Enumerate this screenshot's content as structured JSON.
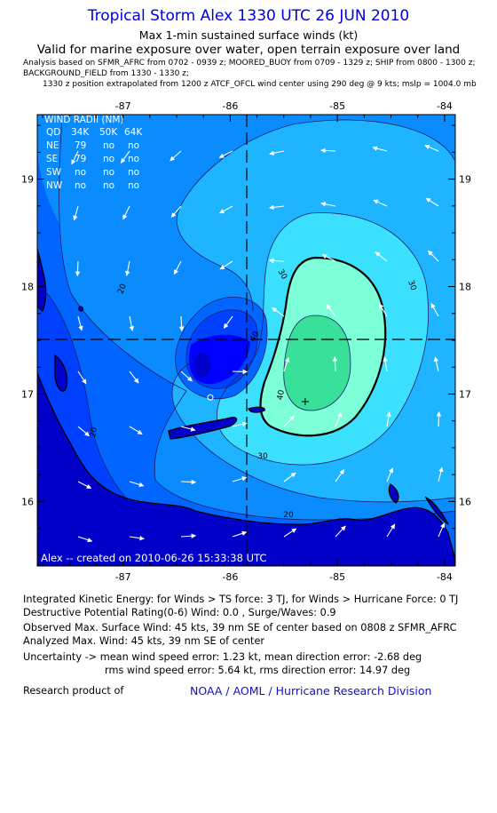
{
  "header": {
    "title": "Tropical Storm Alex 1330 UTC 26 JUN 2010",
    "subtitle": "Max 1-min sustained surface winds (kt)",
    "valid_line": "Valid for marine exposure over water, open terrain exposure over land",
    "analysis_line1": "Analysis based on  SFMR_AFRC from 0702 - 0939 z;  MOORED_BUOY from 0709 - 1329 z;  SHIP from 0800 - 1300 z;",
    "analysis_line2": "BACKGROUND_FIELD from 1330 - 1330 z;",
    "analysis_line3": "1330 z position extrapolated from 1200 z ATCF_OFCL wind center using 290 deg @ 9 kts; mslp = 1004.0 mb"
  },
  "chart_data": {
    "type": "contour",
    "title": "Tropical Storm Alex 1330 UTC 26 JUN 2010",
    "subtitle": "Max 1-min sustained surface winds (kt)",
    "xlim": [
      -87.8,
      -83.9
    ],
    "ylim": [
      15.4,
      19.6
    ],
    "x_ticks": [
      -87,
      -86,
      -85,
      -84
    ],
    "y_ticks": [
      16,
      17,
      18,
      19
    ],
    "contour_labels": [
      "20",
      "20",
      "20",
      "30",
      "30",
      "30",
      "40",
      "40"
    ],
    "storm_center": {
      "lon": -85.97,
      "lat": 17.2
    },
    "max_wind_location": {
      "lon": -85.3,
      "lat": 16.93
    },
    "legend_colors": [
      "#0000ff",
      "#0040ff",
      "#0066ff",
      "#0a8cff",
      "#1eb4ff",
      "#3ce0ff",
      "#7dffd8",
      "#38e09a"
    ],
    "wind_radii": {
      "title": "WIND RADII (NM)",
      "headers": [
        "QD",
        "34K",
        "50K",
        "64K"
      ],
      "rows": [
        [
          "NE",
          "79",
          "no",
          "no"
        ],
        [
          "SE",
          "79",
          "no",
          "no"
        ],
        [
          "SW",
          "no",
          "no",
          "no"
        ],
        [
          "NW",
          "no",
          "no",
          "no"
        ]
      ]
    },
    "watermark": "Alex -- created on 2010-06-26 15:33:38 UTC"
  },
  "info": {
    "ike": "Integrated Kinetic Energy:  for Winds > TS force: 3 TJ,  for Winds > Hurricane Force: 0 TJ",
    "dpr": "Destructive Potential Rating(0-6)  Wind: 0.0 , Surge/Waves: 0.9",
    "observed": "Observed Max. Surface Wind: 45 kts, 39 nm SE of center based on 0808 z SFMR_AFRC",
    "analyzed": "Analyzed Max. Wind: 45 kts, 39 nm SE of center",
    "uncert1": "Uncertainty -> mean wind speed error: 1.23 kt,    mean direction error:  -2.68 deg",
    "uncert2": "rms wind speed error: 5.64 kt,   rms direction error: 14.97 deg",
    "research": "Research product of",
    "org": "NOAA / AOML / Hurricane Research Division"
  }
}
